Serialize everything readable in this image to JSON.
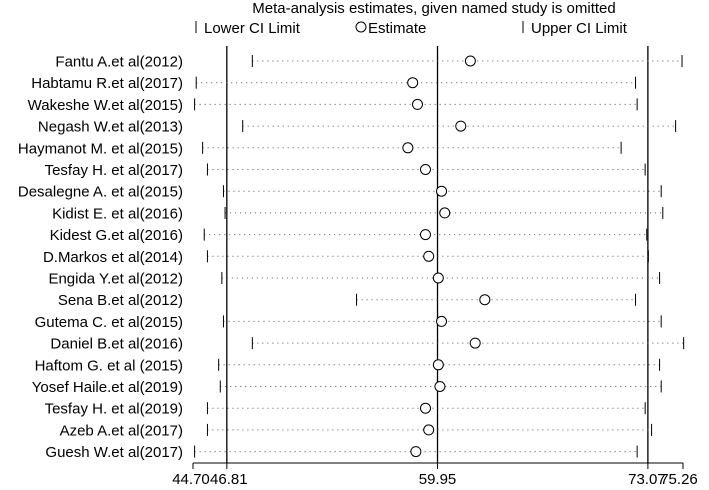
{
  "chart_data": {
    "type": "scatter",
    "title": "Meta-analysis estimates, given named study is omitted",
    "legend": {
      "placement": "top",
      "lower": "Lower CI Limit",
      "estimate": "Estimate",
      "upper": "Upper CI Limit"
    },
    "xlim": [
      44.7,
      75.26
    ],
    "x_ticks": [
      "44.70",
      "46.81",
      "59.95",
      "73.07",
      "75.26"
    ],
    "reference_lines": [
      46.81,
      59.95,
      73.07
    ],
    "studies": [
      {
        "name": "Fantu A.et al(2012)",
        "lower": 48.4,
        "estimate": 62.0,
        "upper": 75.2
      },
      {
        "name": "Habtamu R.et al(2017)",
        "lower": 44.9,
        "estimate": 58.4,
        "upper": 72.3
      },
      {
        "name": "Wakeshe W.et al(2015)",
        "lower": 44.8,
        "estimate": 58.7,
        "upper": 72.4
      },
      {
        "name": "Negash W.et al(2013)",
        "lower": 47.8,
        "estimate": 61.4,
        "upper": 74.8
      },
      {
        "name": "Haymanot M. et al(2015)",
        "lower": 45.3,
        "estimate": 58.1,
        "upper": 71.4
      },
      {
        "name": "Tesfay H. et al(2017)",
        "lower": 45.6,
        "estimate": 59.2,
        "upper": 72.9
      },
      {
        "name": "Desalegne A. et al(2015)",
        "lower": 46.6,
        "estimate": 60.2,
        "upper": 73.9
      },
      {
        "name": "Kidist E. et al(2016)",
        "lower": 46.7,
        "estimate": 60.4,
        "upper": 74.0
      },
      {
        "name": "Kidest G.et al(2016)",
        "lower": 45.4,
        "estimate": 59.2,
        "upper": 73.0
      },
      {
        "name": "D.Markos et al(2014)",
        "lower": 45.6,
        "estimate": 59.4,
        "upper": 73.1
      },
      {
        "name": "Engida Y.et al(2012)",
        "lower": 46.5,
        "estimate": 60.0,
        "upper": 73.8
      },
      {
        "name": "Sena B.et al(2012)",
        "lower": 54.9,
        "estimate": 62.9,
        "upper": 72.3
      },
      {
        "name": "Gutema C. et al(2015)",
        "lower": 46.6,
        "estimate": 60.2,
        "upper": 73.9
      },
      {
        "name": "Daniel B.et al(2016)",
        "lower": 48.4,
        "estimate": 62.3,
        "upper": 75.3
      },
      {
        "name": "Haftom G. et al (2015)",
        "lower": 46.3,
        "estimate": 60.0,
        "upper": 73.8
      },
      {
        "name": "Yosef Haile.et al(2019)",
        "lower": 46.4,
        "estimate": 60.1,
        "upper": 73.9
      },
      {
        "name": "Tesfay H. et al(2019)",
        "lower": 45.6,
        "estimate": 59.2,
        "upper": 72.9
      },
      {
        "name": "Azeb A.et al(2017)",
        "lower": 45.6,
        "estimate": 59.4,
        "upper": 73.3
      },
      {
        "name": "Guesh W.et al(2017)",
        "lower": 44.8,
        "estimate": 58.6,
        "upper": 72.4
      }
    ]
  }
}
